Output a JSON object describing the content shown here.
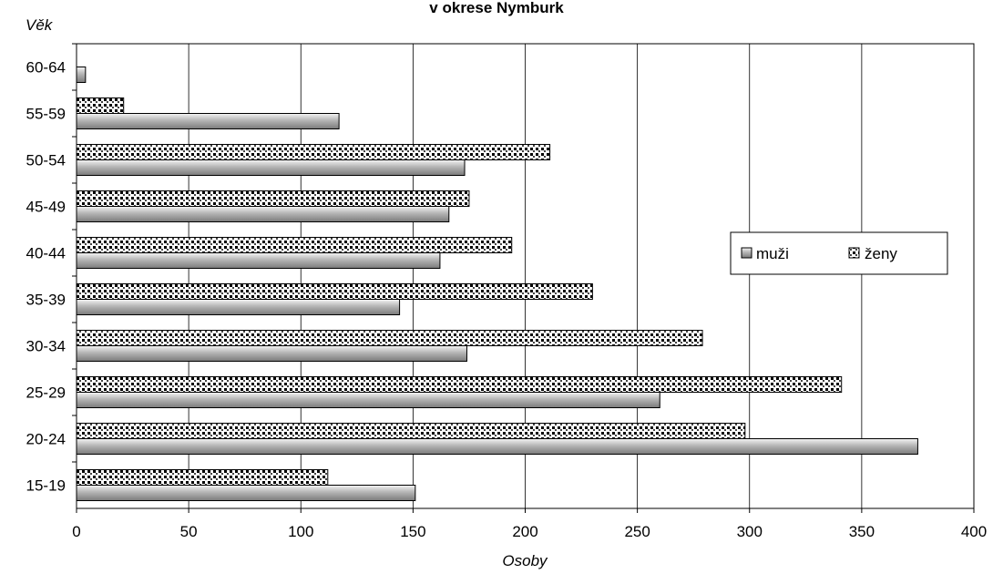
{
  "chart_data": {
    "type": "bar",
    "orientation": "horizontal",
    "title": "v okrese Nymburk",
    "xlabel": "Osoby",
    "ylabel": "Věk",
    "categories": [
      "15-19",
      "20-24",
      "25-29",
      "30-34",
      "35-39",
      "40-44",
      "45-49",
      "50-54",
      "55-59",
      "60-64"
    ],
    "series": [
      {
        "name": "muži",
        "values": [
          151,
          375,
          260,
          174,
          144,
          162,
          166,
          173,
          117,
          4
        ],
        "pattern": "gray-gradient",
        "color": "#a6a6a6"
      },
      {
        "name": "ženy",
        "values": [
          112,
          298,
          341,
          279,
          230,
          194,
          175,
          211,
          21,
          null
        ],
        "pattern": "dotted",
        "color": "#000000"
      }
    ],
    "xlim": [
      0,
      400
    ],
    "xticks": [
      "0",
      "50",
      "100",
      "150",
      "200",
      "250",
      "300",
      "350",
      "400"
    ],
    "grid": true,
    "legend_position": "right"
  }
}
